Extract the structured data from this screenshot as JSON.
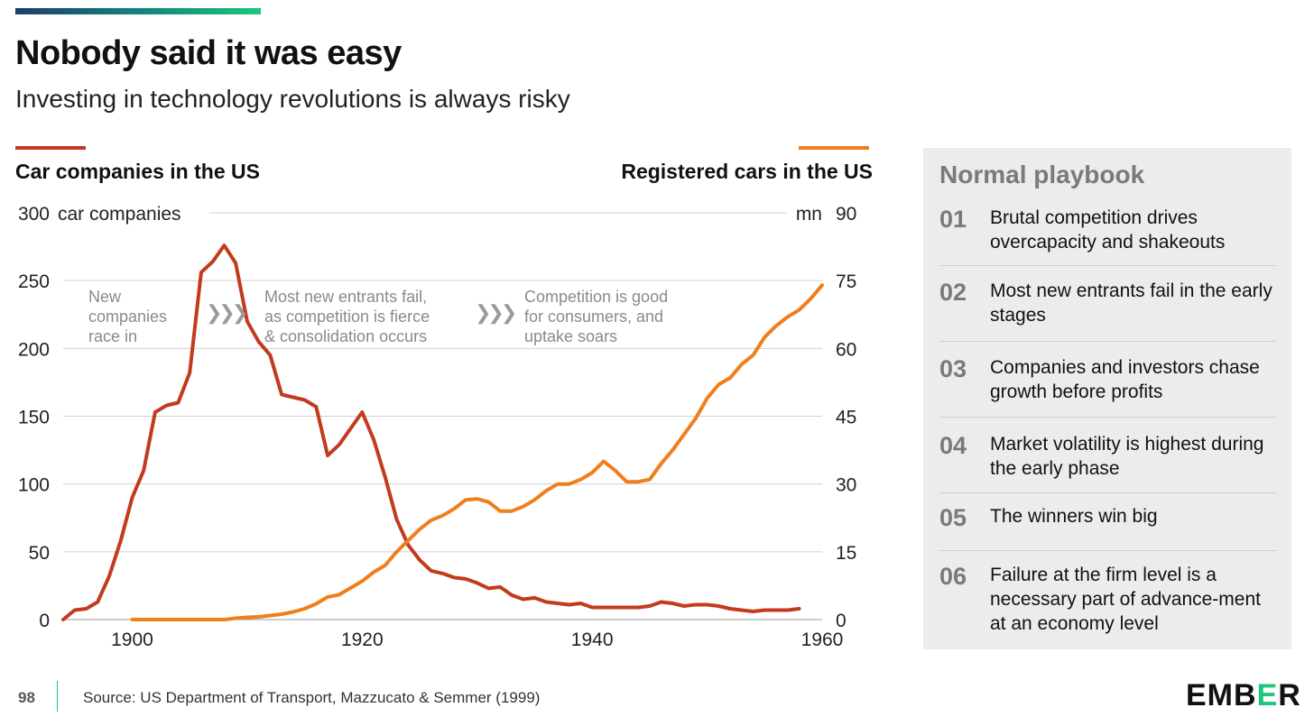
{
  "header": {
    "title": "Nobody said it was easy",
    "subtitle": "Investing in technology revolutions is always risky"
  },
  "chart_data": {
    "type": "line",
    "left_series_title": "Car companies in the US",
    "right_series_title": "Registered cars in the US",
    "left_axis": {
      "unit_label": "car companies",
      "ylim": [
        0,
        300
      ],
      "ticks": [
        "0",
        "50",
        "100",
        "150",
        "200",
        "250",
        "300"
      ]
    },
    "right_axis": {
      "unit_label": "mn",
      "ylim": [
        0,
        90
      ],
      "ticks": [
        "0",
        "15",
        "30",
        "45",
        "60",
        "75",
        "90"
      ]
    },
    "x_axis": {
      "xlim": [
        1894,
        1960
      ],
      "ticks": [
        "1900",
        "1920",
        "1940",
        "1960"
      ]
    },
    "grid": "horizontal",
    "colors": {
      "companies": "#c23b1e",
      "registered": "#f07e1b",
      "grid": "#d0d0d0"
    },
    "series": [
      {
        "name": "Car companies in the US",
        "axis": "left",
        "points": [
          [
            1894,
            0
          ],
          [
            1895,
            7
          ],
          [
            1896,
            8
          ],
          [
            1897,
            13
          ],
          [
            1898,
            32
          ],
          [
            1899,
            58
          ],
          [
            1900,
            90
          ],
          [
            1901,
            110
          ],
          [
            1902,
            153
          ],
          [
            1903,
            158
          ],
          [
            1904,
            160
          ],
          [
            1905,
            182
          ],
          [
            1906,
            256
          ],
          [
            1907,
            264
          ],
          [
            1908,
            276
          ],
          [
            1909,
            263
          ],
          [
            1910,
            220
          ],
          [
            1911,
            205
          ],
          [
            1912,
            195
          ],
          [
            1913,
            166
          ],
          [
            1914,
            164
          ],
          [
            1915,
            162
          ],
          [
            1916,
            157
          ],
          [
            1917,
            121
          ],
          [
            1918,
            129
          ],
          [
            1919,
            141
          ],
          [
            1920,
            153
          ],
          [
            1921,
            133
          ],
          [
            1922,
            105
          ],
          [
            1923,
            74
          ],
          [
            1924,
            55
          ],
          [
            1925,
            44
          ],
          [
            1926,
            36
          ],
          [
            1927,
            34
          ],
          [
            1928,
            31
          ],
          [
            1929,
            30
          ],
          [
            1930,
            27
          ],
          [
            1931,
            23
          ],
          [
            1932,
            24
          ],
          [
            1933,
            18
          ],
          [
            1934,
            15
          ],
          [
            1935,
            16
          ],
          [
            1936,
            13
          ],
          [
            1937,
            12
          ],
          [
            1938,
            11
          ],
          [
            1939,
            12
          ],
          [
            1940,
            9
          ],
          [
            1941,
            9
          ],
          [
            1942,
            9
          ],
          [
            1943,
            9
          ],
          [
            1944,
            9
          ],
          [
            1945,
            10
          ],
          [
            1946,
            13
          ],
          [
            1947,
            12
          ],
          [
            1948,
            10
          ],
          [
            1949,
            11
          ],
          [
            1950,
            11
          ],
          [
            1951,
            10
          ],
          [
            1952,
            8
          ],
          [
            1953,
            7
          ],
          [
            1954,
            6
          ],
          [
            1955,
            7
          ],
          [
            1956,
            7
          ],
          [
            1957,
            7
          ],
          [
            1958,
            8
          ]
        ]
      },
      {
        "name": "Registered cars in the US",
        "axis": "right",
        "points": [
          [
            1900,
            0
          ],
          [
            1901,
            0
          ],
          [
            1902,
            0
          ],
          [
            1903,
            0
          ],
          [
            1904,
            0
          ],
          [
            1905,
            0
          ],
          [
            1906,
            0
          ],
          [
            1907,
            0
          ],
          [
            1908,
            0
          ],
          [
            1909,
            0.3
          ],
          [
            1910,
            0.5
          ],
          [
            1911,
            0.6
          ],
          [
            1912,
            0.9
          ],
          [
            1913,
            1.2
          ],
          [
            1914,
            1.7
          ],
          [
            1915,
            2.4
          ],
          [
            1916,
            3.5
          ],
          [
            1917,
            5
          ],
          [
            1918,
            5.5
          ],
          [
            1919,
            7
          ],
          [
            1920,
            8.5
          ],
          [
            1921,
            10.5
          ],
          [
            1922,
            12
          ],
          [
            1923,
            15
          ],
          [
            1924,
            17.5
          ],
          [
            1925,
            20
          ],
          [
            1926,
            22
          ],
          [
            1927,
            23
          ],
          [
            1928,
            24.5
          ],
          [
            1929,
            26.5
          ],
          [
            1930,
            26.7
          ],
          [
            1931,
            26
          ],
          [
            1932,
            24
          ],
          [
            1933,
            24
          ],
          [
            1934,
            25
          ],
          [
            1935,
            26.5
          ],
          [
            1936,
            28.5
          ],
          [
            1937,
            30
          ],
          [
            1938,
            30
          ],
          [
            1939,
            31
          ],
          [
            1940,
            32.5
          ],
          [
            1941,
            35
          ],
          [
            1942,
            33
          ],
          [
            1943,
            30.5
          ],
          [
            1944,
            30.5
          ],
          [
            1945,
            31
          ],
          [
            1946,
            34.5
          ],
          [
            1947,
            37.5
          ],
          [
            1948,
            41
          ],
          [
            1949,
            44.5
          ],
          [
            1950,
            49
          ],
          [
            1951,
            52
          ],
          [
            1952,
            53.5
          ],
          [
            1953,
            56.5
          ],
          [
            1954,
            58.5
          ],
          [
            1955,
            62.5
          ],
          [
            1956,
            65
          ],
          [
            1957,
            67
          ],
          [
            1958,
            68.5
          ],
          [
            1959,
            71
          ],
          [
            1960,
            74
          ]
        ]
      }
    ],
    "annotations": [
      "New\ncompanies\nrace in",
      "Most new entrants fail,\nas competition is fierce\n& consolidation occurs",
      "Competition is good\nfor consumers, and\nuptake soars"
    ],
    "annotation_separator": "❯❯❯"
  },
  "playbook": {
    "title": "Normal playbook",
    "items": [
      {
        "num": "01",
        "text": "Brutal competition drives overcapacity and shakeouts"
      },
      {
        "num": "02",
        "text": "Most new entrants fail in the early stages"
      },
      {
        "num": "03",
        "text": "Companies and investors chase growth before profits"
      },
      {
        "num": "04",
        "text": "Market volatility is highest during the early phase"
      },
      {
        "num": "05",
        "text": "The winners win big"
      },
      {
        "num": "06",
        "text": "Failure at the firm level is a necessary part of advance-ment at an economy level"
      }
    ]
  },
  "footer": {
    "page_number": "98",
    "source": "Source: US Department of Transport, Mazzucato & Semmer (1999)",
    "logo": "EMBER"
  }
}
